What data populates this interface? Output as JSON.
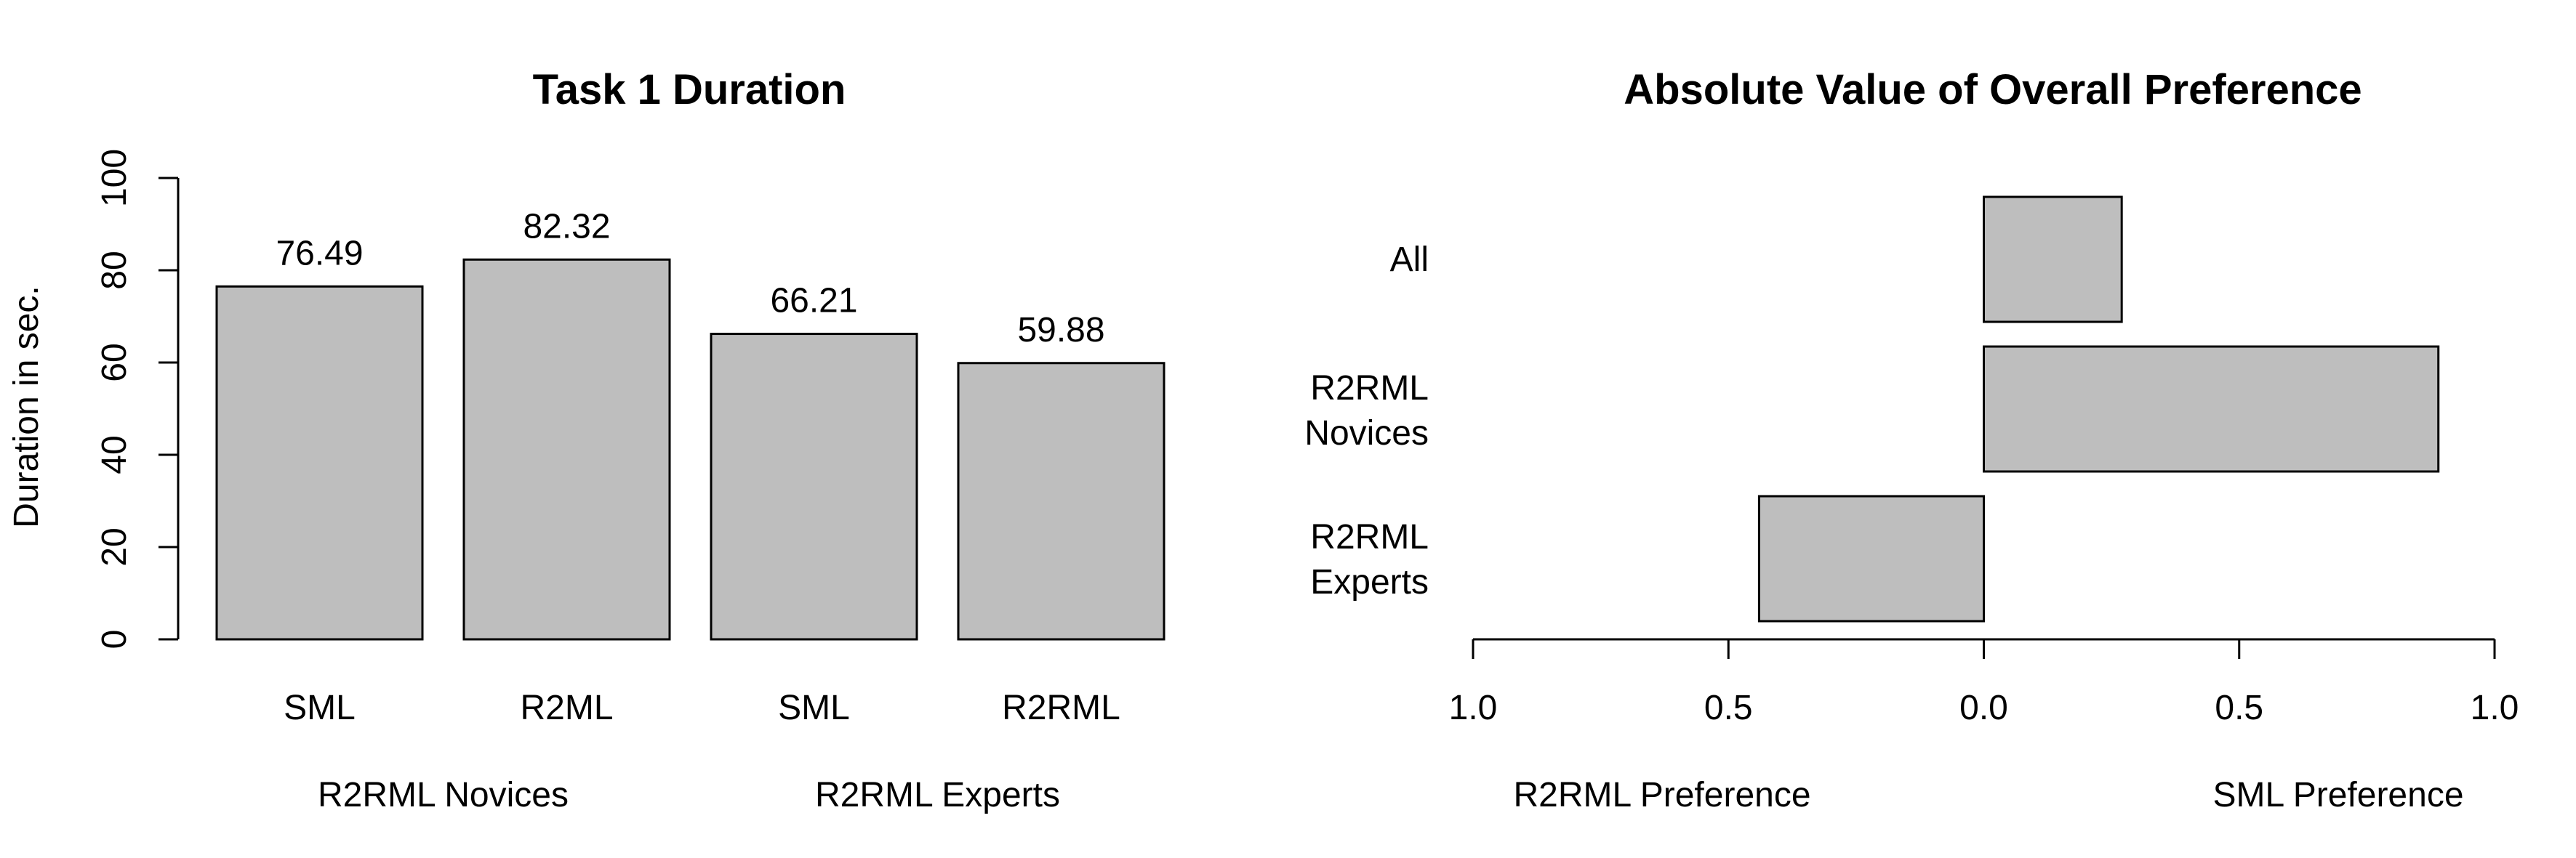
{
  "bar_color": "#bebebe",
  "chart_data": [
    {
      "type": "bar",
      "title": "Task 1 Duration",
      "ylabel": "Duration in sec.",
      "ylim": [
        0,
        100
      ],
      "yticks": [
        "0",
        "20",
        "40",
        "60",
        "80",
        "100"
      ],
      "categories": [
        "SML",
        "R2ML",
        "SML",
        "R2RML"
      ],
      "groups": [
        "R2RML Novices",
        "R2RML Experts"
      ],
      "values": [
        76.49,
        82.32,
        66.21,
        59.88
      ],
      "data_labels": [
        "76.49",
        "82.32",
        "66.21",
        "59.88"
      ],
      "grid": false
    },
    {
      "type": "bar",
      "orientation": "horizontal",
      "title": "Absolute Value of Overall Preference",
      "categories": [
        "All",
        "R2RML Novices",
        "R2RML Experts"
      ],
      "category_lines": [
        [
          "All"
        ],
        [
          "R2RML",
          "Novices"
        ],
        [
          "R2RML",
          "Experts"
        ]
      ],
      "values": [
        0.27,
        0.89,
        -0.44
      ],
      "xlim": [
        -1,
        1
      ],
      "xticks": [
        "1.0",
        "0.5",
        "0.0",
        "0.5",
        "1.0"
      ],
      "xlabel_left": "R2RML Preference",
      "xlabel_right": "SML Preference",
      "grid": false
    }
  ]
}
